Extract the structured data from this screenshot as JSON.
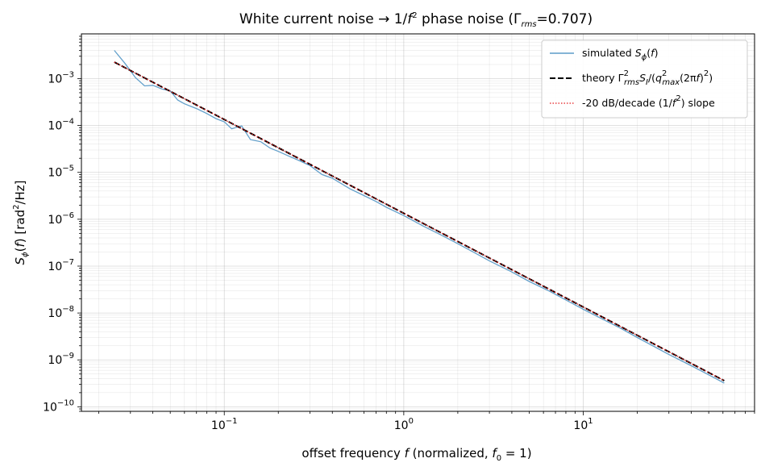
{
  "chart_data": {
    "type": "line",
    "title": {
      "prefix": "White current noise → 1/",
      "f": "f",
      "exp": "2",
      "mid": " phase noise (Γ",
      "sub": "rms",
      "suffix": "=0.707)"
    },
    "xlabel": {
      "prefix": "offset frequency ",
      "f": "f",
      "mid": " (normalized, ",
      "f0": "f",
      "f0sub": "0",
      "suffix": " = 1)"
    },
    "ylabel": {
      "S": "S",
      "phi": "ϕ",
      "open": "(",
      "f": "f",
      "rest": ") [rad",
      "exp": "2",
      "unit": "/Hz]"
    },
    "x_scale": "log",
    "y_scale": "log",
    "xlim": [
      0.016,
      90
    ],
    "ylim": [
      8e-11,
      0.009
    ],
    "grid": "on (major and minor)",
    "legend_placement": "top-right",
    "x_ticks": [
      {
        "value": 0.1,
        "base": "10",
        "exp": "−1"
      },
      {
        "value": 1,
        "base": "10",
        "exp": "0"
      },
      {
        "value": 10,
        "base": "10",
        "exp": "1"
      }
    ],
    "y_ticks": [
      {
        "value": 1e-10,
        "base": "10",
        "exp": "−10"
      },
      {
        "value": 1e-09,
        "base": "10",
        "exp": "−9"
      },
      {
        "value": 1e-08,
        "base": "10",
        "exp": "−8"
      },
      {
        "value": 1e-07,
        "base": "10",
        "exp": "−7"
      },
      {
        "value": 1e-06,
        "base": "10",
        "exp": "−6"
      },
      {
        "value": 1e-05,
        "base": "10",
        "exp": "−5"
      },
      {
        "value": 0.0001,
        "base": "10",
        "exp": "−4"
      },
      {
        "value": 0.001,
        "base": "10",
        "exp": "−3"
      }
    ],
    "series": [
      {
        "name": "simulated S_ϕ(f)",
        "legend": {
          "prefix": "simulated ",
          "S": "S",
          "phi": "ϕ",
          "open": "(",
          "f": "f",
          "close": ")"
        },
        "style": "solid",
        "color": "#5b9bc8",
        "x": [
          0.0244,
          0.028,
          0.032,
          0.036,
          0.04,
          0.045,
          0.05,
          0.055,
          0.06,
          0.07,
          0.08,
          0.09,
          0.1,
          0.11,
          0.125,
          0.14,
          0.16,
          0.18,
          0.2,
          0.23,
          0.26,
          0.3,
          0.35,
          0.4,
          0.5,
          0.6,
          0.7,
          0.8,
          1.0,
          1.3,
          1.6,
          2.0,
          2.5,
          3.0,
          4.0,
          5.0,
          6.5,
          8.0,
          10.0,
          13.0,
          16.0,
          20.0,
          25.0,
          30.0,
          40.0,
          50.0,
          61.0
        ],
        "y": [
          0.004,
          0.0021,
          0.00105,
          0.0007,
          0.00072,
          0.0006,
          0.00055,
          0.00035,
          0.00029,
          0.00023,
          0.00018,
          0.00014,
          0.00012,
          8.5e-05,
          9.8e-05,
          5e-05,
          4.5e-05,
          3.3e-05,
          2.8e-05,
          2.2e-05,
          1.8e-05,
          1.4e-05,
          9e-06,
          7.5e-06,
          4.5e-06,
          3.2e-06,
          2.4e-06,
          1.8e-06,
          1.2e-06,
          7e-07,
          4.7e-07,
          3e-07,
          1.9e-07,
          1.3e-07,
          7.5e-08,
          4.7e-08,
          2.9e-08,
          1.9e-08,
          1.2e-08,
          7.2e-09,
          4.8e-09,
          3e-09,
          1.9e-09,
          1.3e-09,
          7.5e-10,
          4.8e-10,
          3.2e-10
        ]
      },
      {
        "name": "theory Γ_rms² S_I/(q_max²(2πf)²)",
        "legend": {
          "prefix": "theory Γ",
          "exp1": "2",
          "sub1": "rms",
          "S": "S",
          "Isub": "I",
          "mid": "/(",
          "q": "q",
          "exp2": "2",
          "sub2": "max",
          "tail": "(2π",
          "f": "f",
          "exp3": "2",
          "end": ")",
          "close": ")"
        },
        "style": "dashed",
        "color": "#000000",
        "x": [
          0.0244,
          61.0
        ],
        "y": [
          0.00225,
          3.6e-10
        ]
      },
      {
        "name": "-20 dB/decade (1/f²) slope",
        "legend": {
          "prefix": "-20 dB/decade (1/",
          "f": "f",
          "exp": "2",
          "suffix": ") slope"
        },
        "style": "dotted",
        "color": "#e31a1c",
        "x": [
          0.0244,
          61.0
        ],
        "y": [
          0.00225,
          3.6e-10
        ]
      }
    ]
  }
}
